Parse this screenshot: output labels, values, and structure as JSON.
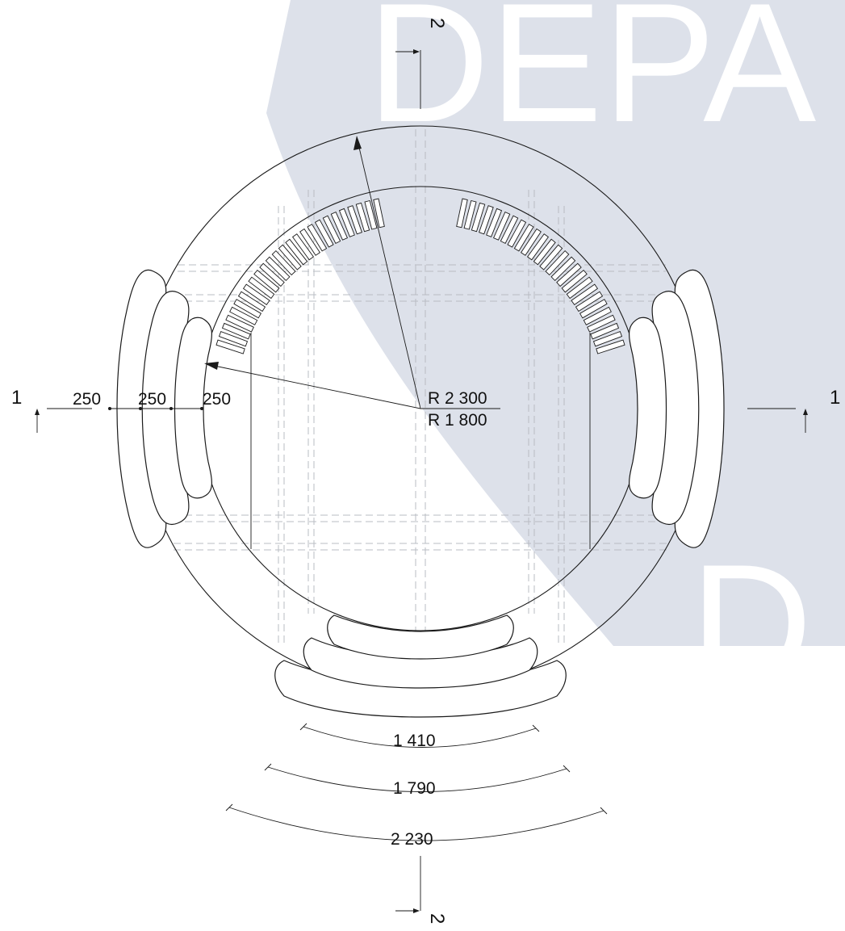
{
  "watermark": {
    "top_text": "DEPA",
    "bottom_text": "D"
  },
  "section_marks": {
    "left": "1",
    "right": "1",
    "top": "2",
    "bottom": "2"
  },
  "radius_labels": {
    "outer": "R 2 300",
    "inner": "R 1 800"
  },
  "seat_depth_labels": [
    "250",
    "250",
    "250"
  ],
  "arc_dimensions": [
    "1 410",
    "1 790",
    "2 230"
  ]
}
